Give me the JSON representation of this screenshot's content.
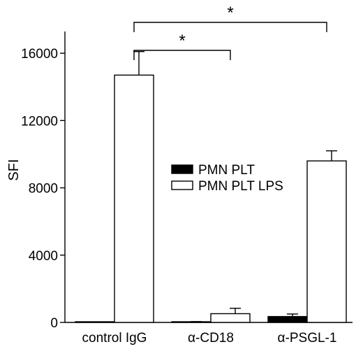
{
  "chart_data": {
    "type": "bar",
    "title": "",
    "xlabel": "",
    "ylabel": "SFI",
    "ylim": [
      0,
      18000
    ],
    "yticks": [
      0,
      4000,
      8000,
      12000,
      16000
    ],
    "ytick_labels": [
      "0",
      "4000",
      "8000",
      "12000",
      "16000"
    ],
    "categories": [
      "control IgG",
      "α-CD18",
      "α-PSGL-1"
    ],
    "series": [
      {
        "name": "PMN PLT",
        "fill": "#000000",
        "values": [
          0,
          30,
          350
        ],
        "errors": [
          0,
          20,
          150
        ]
      },
      {
        "name": "PMN PLT LPS",
        "fill": "#ffffff",
        "values": [
          14700,
          520,
          9600
        ],
        "errors": [
          1400,
          320,
          600
        ]
      }
    ],
    "legend": "center-right",
    "grid": false,
    "annotations": [
      {
        "text": "*",
        "from_category": 0,
        "to_category": 1
      },
      {
        "text": "*",
        "from_category": 0,
        "to_category": 2
      }
    ]
  }
}
